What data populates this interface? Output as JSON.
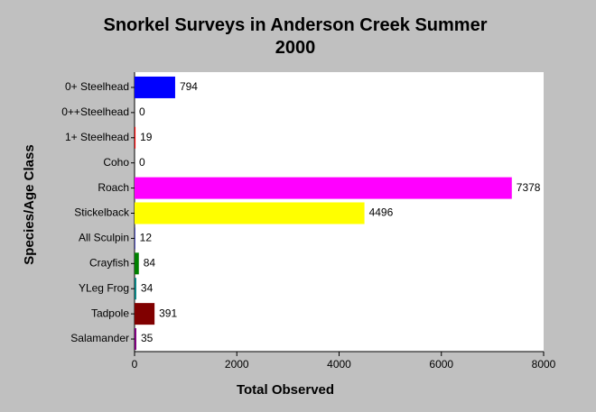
{
  "chart_data": {
    "type": "hbar",
    "title": "Snorkel Surveys in Anderson Creek Summer 2000",
    "x_label": "Total Observed",
    "y_label": "Species/Age Class",
    "categories": [
      "0+ Steelhead",
      "0++Steelhead",
      "1+ Steelhead",
      "Coho",
      "Roach",
      "Stickelback",
      "All Sculpin",
      "Crayfish",
      "YLeg Frog",
      "Tadpole",
      "Salamander"
    ],
    "values": [
      794,
      0,
      19,
      0,
      7378,
      4496,
      12,
      84,
      34,
      391,
      35
    ],
    "colors": [
      "#0000ff",
      "#00ffff",
      "#ff0000",
      "#00ff00",
      "#ff00ff",
      "#ffff00",
      "#0000a0",
      "#008000",
      "#008080",
      "#800000",
      "#800080"
    ],
    "xlim": [
      0,
      8000
    ],
    "xticks": [
      0,
      2000,
      4000,
      6000,
      8000
    ],
    "grid": false
  }
}
